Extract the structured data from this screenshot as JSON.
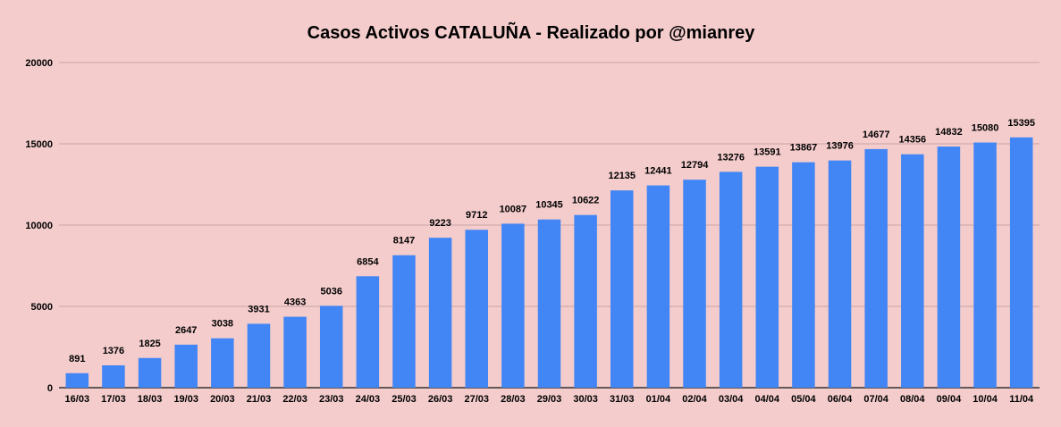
{
  "colors": {
    "background": "#f4cccc",
    "bar": "#4285f4",
    "gridline": "#c8a3a3",
    "baseline": "#333333",
    "text": "#000000"
  },
  "chart_data": {
    "type": "bar",
    "title": "Casos Activos CATALUÑA - Realizado por @mianrey",
    "xlabel": "",
    "ylabel": "",
    "ylim": [
      0,
      20000
    ],
    "yticks": [
      0,
      5000,
      10000,
      15000,
      20000
    ],
    "grid": true,
    "legend": "none",
    "data_labels": true,
    "categories": [
      "16/03",
      "17/03",
      "18/03",
      "19/03",
      "20/03",
      "21/03",
      "22/03",
      "23/03",
      "24/03",
      "25/03",
      "26/03",
      "27/03",
      "28/03",
      "29/03",
      "30/03",
      "31/03",
      "01/04",
      "02/04",
      "03/04",
      "04/04",
      "05/04",
      "06/04",
      "07/04",
      "08/04",
      "09/04",
      "10/04",
      "11/04"
    ],
    "values": [
      891,
      1376,
      1825,
      2647,
      3038,
      3931,
      4363,
      5036,
      6854,
      8147,
      9223,
      9712,
      10087,
      10345,
      10622,
      12135,
      12441,
      12794,
      13276,
      13591,
      13867,
      13976,
      14677,
      14356,
      14832,
      15080,
      15395
    ]
  }
}
